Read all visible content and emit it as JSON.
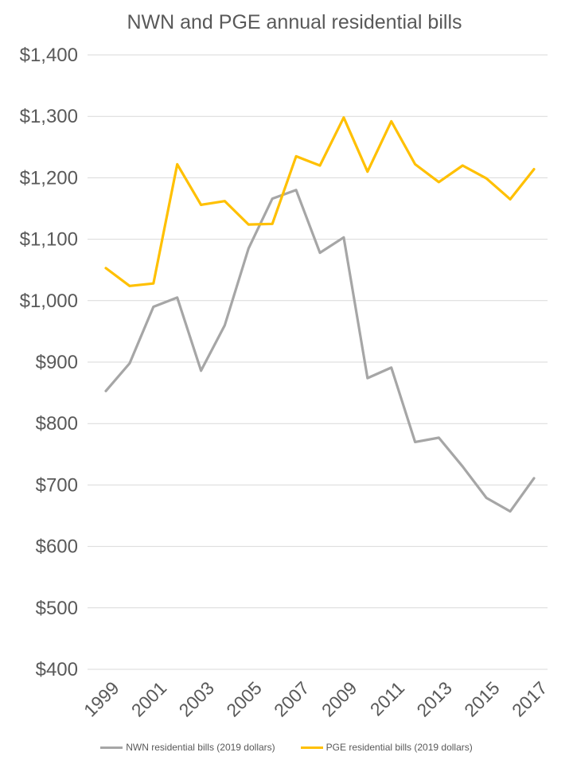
{
  "chart": {
    "title": "NWN and PGE annual residential bills",
    "legend": [
      {
        "label": "NWN residential bills (2019 dollars)",
        "color": "#A6A6A6"
      },
      {
        "label": "PGE residential bills (2019 dollars)",
        "color": "#FFC000"
      }
    ]
  },
  "chart_data": {
    "type": "line",
    "title": "NWN and PGE annual residential bills",
    "x": [
      1999,
      2000,
      2001,
      2002,
      2003,
      2004,
      2005,
      2006,
      2007,
      2008,
      2009,
      2010,
      2011,
      2012,
      2013,
      2014,
      2015,
      2016,
      2017
    ],
    "series": [
      {
        "name": "NWN residential bills (2019 dollars)",
        "color": "#A6A6A6",
        "values": [
          853,
          898,
          990,
          1005,
          886,
          960,
          1085,
          1166,
          1180,
          1078,
          1103,
          874,
          891,
          770,
          777,
          730,
          679,
          657,
          711
        ]
      },
      {
        "name": "PGE residential bills (2019 dollars)",
        "color": "#FFC000",
        "values": [
          1053,
          1024,
          1028,
          1222,
          1156,
          1162,
          1124,
          1125,
          1235,
          1220,
          1298,
          1210,
          1292,
          1222,
          1193,
          1220,
          1199,
          1165,
          1214
        ]
      }
    ],
    "ylim": [
      400,
      1400
    ],
    "ytick_step": 100,
    "ytick_labels": [
      "$400",
      "$500",
      "$600",
      "$700",
      "$800",
      "$900",
      "$1,000",
      "$1,100",
      "$1,200",
      "$1,300",
      "$1,400"
    ],
    "xtick_labels": [
      "1999",
      "2001",
      "2003",
      "2005",
      "2007",
      "2009",
      "2011",
      "2013",
      "2015",
      "2017"
    ],
    "grid": true,
    "legend_position": "bottom",
    "colors": {
      "grid": "#D9D9D9",
      "text": "#595959"
    }
  }
}
